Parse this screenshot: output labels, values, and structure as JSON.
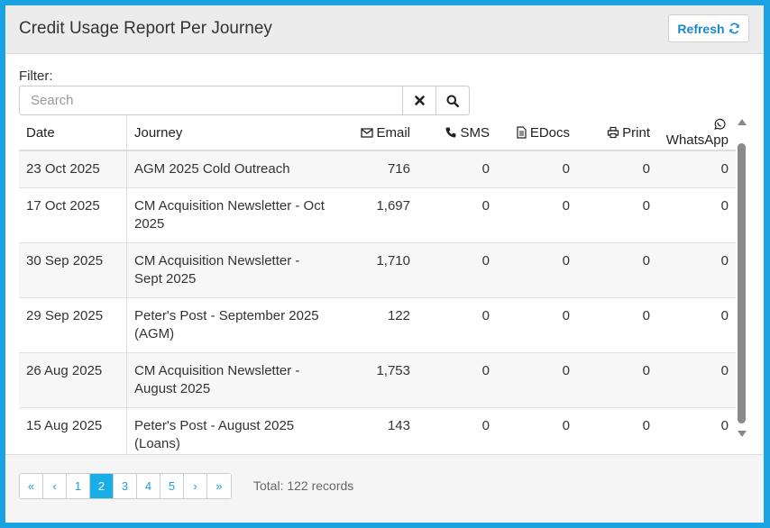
{
  "header": {
    "title": "Credit Usage Report Per Journey",
    "refresh_label": "Refresh"
  },
  "filter": {
    "label": "Filter:",
    "placeholder": "Search"
  },
  "table": {
    "columns": [
      "Date",
      "Journey",
      "Email",
      "SMS",
      "EDocs",
      "Print",
      "WhatsApp"
    ],
    "rows": [
      {
        "date": "23 Oct 2025",
        "journey": "AGM 2025 Cold Outreach",
        "email": "716",
        "sms": "0",
        "edocs": "0",
        "print": "0",
        "whatsapp": "0"
      },
      {
        "date": "17 Oct 2025",
        "journey": "CM Acquisition Newsletter - Oct 2025",
        "email": "1,697",
        "sms": "0",
        "edocs": "0",
        "print": "0",
        "whatsapp": "0"
      },
      {
        "date": "30 Sep 2025",
        "journey": "CM Acquisition Newsletter - Sept 2025",
        "email": "1,710",
        "sms": "0",
        "edocs": "0",
        "print": "0",
        "whatsapp": "0"
      },
      {
        "date": "29 Sep 2025",
        "journey": "Peter's Post - September 2025 (AGM)",
        "email": "122",
        "sms": "0",
        "edocs": "0",
        "print": "0",
        "whatsapp": "0"
      },
      {
        "date": "26 Aug 2025",
        "journey": "CM Acquisition Newsletter - August 2025",
        "email": "1,753",
        "sms": "0",
        "edocs": "0",
        "print": "0",
        "whatsapp": "0"
      },
      {
        "date": "15 Aug 2025",
        "journey": "Peter's Post - August 2025 (Loans)",
        "email": "143",
        "sms": "0",
        "edocs": "0",
        "print": "0",
        "whatsapp": "0"
      }
    ]
  },
  "pagination": {
    "first": "«",
    "prev": "‹",
    "next": "›",
    "last": "»",
    "pages": [
      "1",
      "2",
      "3",
      "4",
      "5"
    ],
    "current_page": "2",
    "total": "Total: 122 records"
  },
  "colors": {
    "accent": "#1aaee6",
    "link": "#1a88d0",
    "background": "#1aa3e0"
  }
}
